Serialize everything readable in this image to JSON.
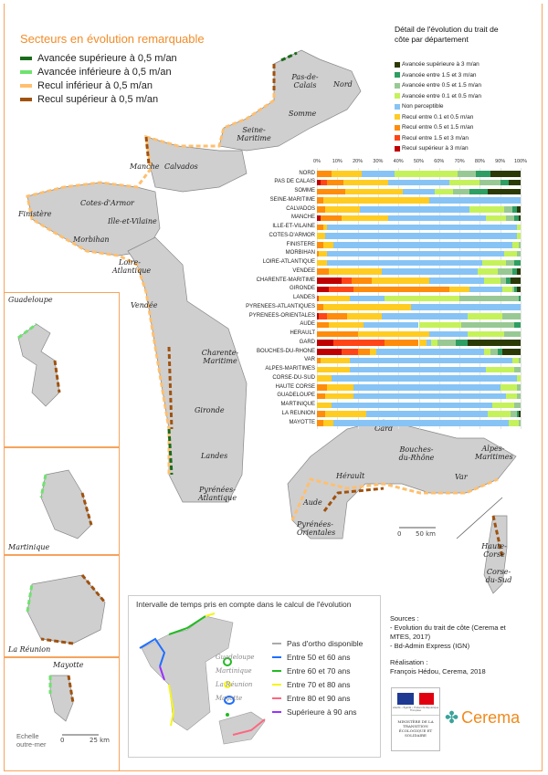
{
  "map_legend": {
    "title": "Secteurs en évolution remarquable",
    "items": [
      {
        "label": "Avancée supérieure à 0,5 m/an",
        "color": "#1a6b1a"
      },
      {
        "label": "Avancée inférieure à 0,5 m/an",
        "color": "#6fe26f"
      },
      {
        "label": "Recul inférieur à 0,5 m/an",
        "color": "#ffbf6e"
      },
      {
        "label": "Recul supérieur à 0,5 m/an",
        "color": "#a0520f"
      }
    ]
  },
  "departments": [
    "Nord",
    "Pas-de-Calais",
    "Somme",
    "Seine-Maritime",
    "Calvados",
    "Manche",
    "Cotes-d'Armor",
    "Finistère",
    "Ille-et-Vilaine",
    "Morbihan",
    "Loire-Atlantique",
    "Vendée",
    "Charente-Maritime",
    "Gironde",
    "Landes",
    "Pyrénées-Atlantique",
    "Gard",
    "Hérault",
    "Bouches-du-Rhône",
    "Var",
    "Alpes-Maritimes",
    "Aude",
    "Pyrénées-Orientales",
    "Haute-Corse",
    "Corse-du-Sud"
  ],
  "insets": [
    "Guadeloupe",
    "Martinique",
    "La Réunion",
    "Mayotte"
  ],
  "scale_outremer": {
    "label": "Echelle outre-mer",
    "zero": "0",
    "value": "25 km"
  },
  "scale_metro": {
    "zero": "0",
    "value": "50 km"
  },
  "chart_data": {
    "type": "bar",
    "stacked": true,
    "orientation": "horizontal",
    "title": "Détail de l'évolution du trait de côte par département",
    "xlim": [
      0,
      100
    ],
    "xticks": [
      "0%",
      "10%",
      "20%",
      "30%",
      "40%",
      "50%",
      "60%",
      "70%",
      "80%",
      "90%",
      "100%"
    ],
    "legend_position": "top-right",
    "categories": [
      "NORD",
      "PAS DE CALAIS",
      "SOMME",
      "SEINE-MARITIME",
      "CALVADOS",
      "MANCHE",
      "ILLE-ET-VILAINE",
      "COTES-D'ARMOR",
      "FINISTERE",
      "MORBIHAN",
      "LOIRE-ATLANTIQUE",
      "VENDEE",
      "CHARENTE-MARITIME",
      "GIRONDE",
      "LANDES",
      "PYRENEES-ATLANTIQUES",
      "PYRENEES-ORIENTALES",
      "AUDE",
      "HERAULT",
      "GARD",
      "BOUCHES-DU-RHONE",
      "VAR",
      "ALPES-MARITIMES",
      "CORSE-DU-SUD",
      "HAUTE CORSE",
      "GUADELOUPE",
      "MARTINIQUE",
      "LA REUNION",
      "MAYOTTE"
    ],
    "series": [
      {
        "name": "Recul supérieur à 3 m/an",
        "color": "#c00000",
        "values": [
          0,
          2,
          0,
          0,
          0,
          2,
          0,
          0,
          0,
          0,
          0,
          0,
          12,
          6,
          0,
          0,
          1,
          0,
          0,
          8,
          12,
          0,
          0,
          0,
          0,
          0,
          0,
          0,
          0
        ]
      },
      {
        "name": "Recul entre 1.5 et 3 m/an",
        "color": "#ff4517",
        "values": [
          0,
          3,
          0,
          0,
          0,
          0,
          0,
          0,
          0,
          0,
          0,
          0,
          5,
          12,
          1,
          0,
          4,
          0,
          0,
          25,
          8,
          0,
          0,
          0,
          0,
          0,
          0,
          0,
          0
        ]
      },
      {
        "name": "Recul entre 0.5 et 1.5 m/an",
        "color": "#ff8c0a",
        "values": [
          7,
          8,
          14,
          3,
          4,
          10,
          3,
          0,
          3,
          1,
          0,
          6,
          10,
          47,
          0,
          3,
          10,
          6,
          20,
          17,
          6,
          2,
          0,
          0,
          5,
          4,
          0,
          4,
          3
        ]
      },
      {
        "name": "Recul entre 0.1 et 0.5 m/an",
        "color": "#ffcc22",
        "values": [
          15,
          22,
          28,
          52,
          17,
          23,
          2,
          4,
          5,
          4,
          5,
          26,
          28,
          10,
          15,
          43,
          17,
          17,
          35,
          4,
          3,
          14,
          16,
          7,
          13,
          14,
          7,
          20,
          5
        ]
      },
      {
        "name": "Non perceptible",
        "color": "#87c4f5",
        "values": [
          16,
          30,
          16,
          45,
          54,
          48,
          93,
          94,
          88,
          87,
          76,
          47,
          27,
          16,
          17,
          54,
          42,
          27,
          19,
          2,
          53,
          80,
          67,
          91,
          72,
          75,
          79,
          60,
          86
        ]
      },
      {
        "name": "Avancée entre 0.1 et 0.5 m/an",
        "color": "#c5f25a",
        "values": [
          31,
          15,
          9,
          0,
          17,
          10,
          2,
          2,
          3,
          6,
          12,
          10,
          8,
          5,
          37,
          0,
          17,
          21,
          18,
          3,
          3,
          3,
          14,
          2,
          8,
          5,
          11,
          11,
          5
        ]
      },
      {
        "name": "Avancée entre 0.5 et 1.5 m/an",
        "color": "#98c994",
        "values": [
          9,
          10,
          8,
          0,
          4,
          4,
          0,
          0,
          1,
          2,
          4,
          7,
          3,
          1,
          29,
          0,
          9,
          26,
          8,
          9,
          4,
          1,
          3,
          0,
          2,
          2,
          3,
          3,
          1
        ]
      },
      {
        "name": "Avancée entre 1.5 et 3 m/an",
        "color": "#2e9e62",
        "values": [
          7,
          4,
          9,
          0,
          2,
          2,
          0,
          0,
          0,
          0,
          3,
          2,
          2,
          1,
          1,
          0,
          0,
          3,
          0,
          6,
          2,
          0,
          0,
          0,
          0,
          0,
          0,
          1,
          0
        ]
      },
      {
        "name": "Avancée supérieure à 3 m/an",
        "color": "#2b3a05",
        "values": [
          15,
          6,
          16,
          0,
          2,
          1,
          0,
          0,
          0,
          0,
          0,
          2,
          5,
          2,
          0,
          0,
          0,
          0,
          0,
          26,
          9,
          0,
          0,
          0,
          0,
          0,
          0,
          1,
          0
        ]
      }
    ]
  },
  "interval": {
    "title": "Intervalle de temps pris en compte dans le calcul de l'évolution",
    "insets": [
      "Guadeloupe",
      "Martinique",
      "La Réunion",
      "Mayotte"
    ],
    "items": [
      {
        "label": "Pas d'ortho disponible",
        "color": "#aaaaaa"
      },
      {
        "label": "Entre 50 et 60 ans",
        "color": "#1f6fff"
      },
      {
        "label": "Entre 60 et 70 ans",
        "color": "#22bb22"
      },
      {
        "label": "Entre 70 et 80 ans",
        "color": "#f5f51a"
      },
      {
        "label": "Entre 80 et 90 ans",
        "color": "#ff6680"
      },
      {
        "label": "Supérieure à 90 ans",
        "color": "#9b30ff"
      }
    ]
  },
  "sources": {
    "heading": "Sources :",
    "lines": [
      "- Evolution du trait de côte (Cerema et",
      "MTES, 2017)",
      "- Bd-Admin Express (IGN)"
    ],
    "realisation_heading": "Réalisation :",
    "realisation": "François Hédou, Cerema, 2018"
  },
  "logos": {
    "ministere": "MINISTÈRE DE LA TRANSITION ÉCOLOGIQUE ET SOLIDAIRE",
    "republique": "Liberté • Égalité • Fraternité République Française",
    "cerema": "Cerema"
  }
}
